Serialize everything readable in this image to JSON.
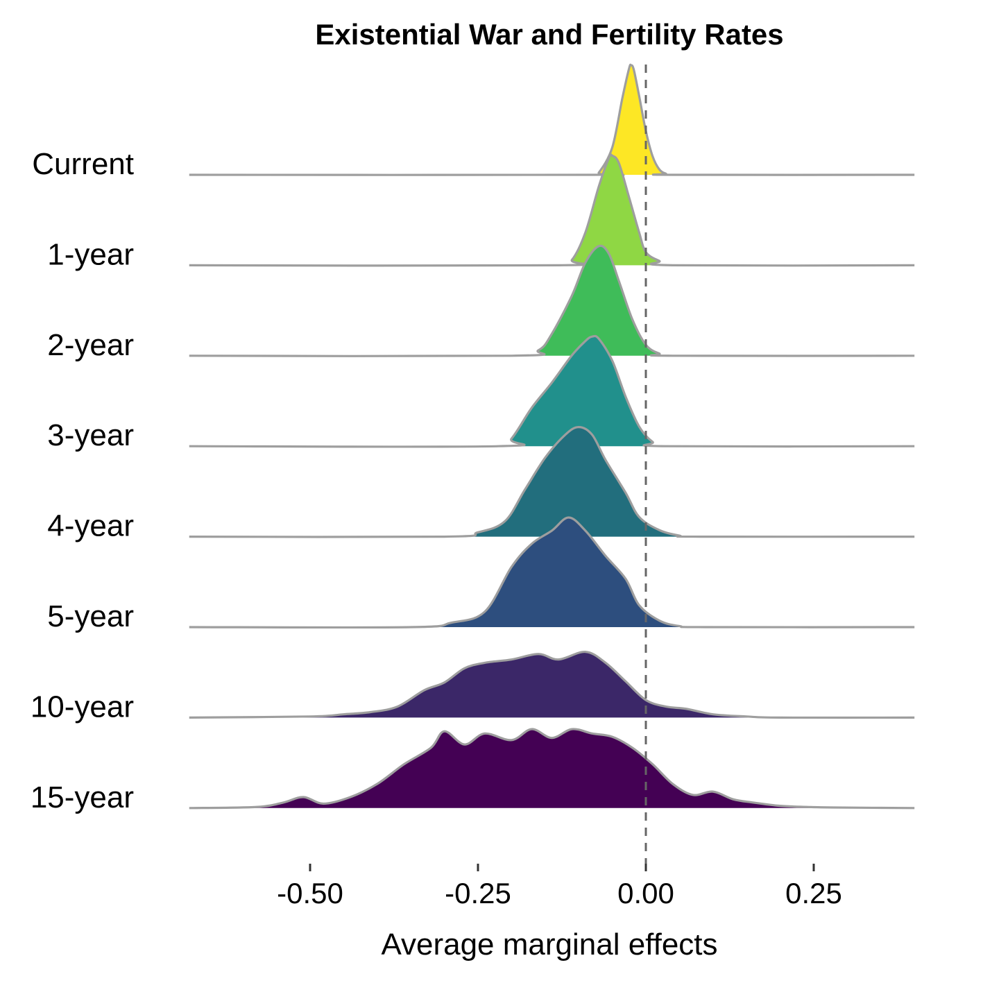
{
  "chart_data": {
    "type": "ridgeline",
    "title": "Existential War and Fertility Rates",
    "xlabel": "Average marginal effects",
    "ylabel": "",
    "xlim": [
      -0.68,
      0.4
    ],
    "x_ticks": [
      -0.5,
      -0.25,
      0.0,
      0.25
    ],
    "x_tick_labels": [
      "-0.50",
      "-0.25",
      "0.00",
      "0.25"
    ],
    "reference_line": {
      "x": 0.0,
      "style": "dashed",
      "color": "#666666"
    },
    "outline_color": "#9e9e9e",
    "series": [
      {
        "name": "Current",
        "color": "#fde725",
        "points": [
          [
            -0.68,
            0
          ],
          [
            -0.08,
            0
          ],
          [
            -0.07,
            0.02
          ],
          [
            -0.05,
            0.25
          ],
          [
            -0.035,
            0.7
          ],
          [
            -0.025,
            0.97
          ],
          [
            -0.022,
            1.0
          ],
          [
            -0.018,
            0.96
          ],
          [
            -0.01,
            0.72
          ],
          [
            0.0,
            0.4
          ],
          [
            0.01,
            0.17
          ],
          [
            0.02,
            0.05
          ],
          [
            0.03,
            0.01
          ],
          [
            0.04,
            0
          ],
          [
            0.4,
            0
          ]
        ]
      },
      {
        "name": "1-year",
        "color": "#8fd744",
        "points": [
          [
            -0.68,
            0
          ],
          [
            -0.13,
            0
          ],
          [
            -0.11,
            0.05
          ],
          [
            -0.09,
            0.3
          ],
          [
            -0.07,
            0.72
          ],
          [
            -0.055,
            0.98
          ],
          [
            -0.05,
            1.0
          ],
          [
            -0.04,
            0.93
          ],
          [
            -0.025,
            0.62
          ],
          [
            -0.01,
            0.3
          ],
          [
            0.0,
            0.12
          ],
          [
            0.02,
            0.04
          ],
          [
            0.04,
            0
          ],
          [
            0.4,
            0
          ]
        ]
      },
      {
        "name": "2-year",
        "color": "#3fbc59",
        "points": [
          [
            -0.68,
            0
          ],
          [
            -0.2,
            0
          ],
          [
            -0.16,
            0.05
          ],
          [
            -0.14,
            0.2
          ],
          [
            -0.11,
            0.55
          ],
          [
            -0.09,
            0.85
          ],
          [
            -0.07,
            1.0
          ],
          [
            -0.055,
            0.93
          ],
          [
            -0.04,
            0.68
          ],
          [
            -0.02,
            0.33
          ],
          [
            0.0,
            0.1
          ],
          [
            0.02,
            0.02
          ],
          [
            0.04,
            0
          ],
          [
            0.4,
            0
          ]
        ]
      },
      {
        "name": "3-year",
        "color": "#21908c",
        "points": [
          [
            -0.68,
            0
          ],
          [
            -0.22,
            0
          ],
          [
            -0.2,
            0.07
          ],
          [
            -0.17,
            0.35
          ],
          [
            -0.14,
            0.58
          ],
          [
            -0.11,
            0.83
          ],
          [
            -0.09,
            0.96
          ],
          [
            -0.08,
            1.0
          ],
          [
            -0.07,
            0.98
          ],
          [
            -0.05,
            0.78
          ],
          [
            -0.03,
            0.45
          ],
          [
            -0.01,
            0.18
          ],
          [
            0.01,
            0.04
          ],
          [
            0.03,
            0
          ],
          [
            0.4,
            0
          ]
        ]
      },
      {
        "name": "4-year",
        "color": "#226e7d",
        "points": [
          [
            -0.68,
            0
          ],
          [
            -0.3,
            0
          ],
          [
            -0.25,
            0.04
          ],
          [
            -0.21,
            0.14
          ],
          [
            -0.18,
            0.43
          ],
          [
            -0.15,
            0.72
          ],
          [
            -0.12,
            0.93
          ],
          [
            -0.1,
            1.0
          ],
          [
            -0.08,
            0.93
          ],
          [
            -0.06,
            0.7
          ],
          [
            -0.03,
            0.4
          ],
          [
            -0.01,
            0.18
          ],
          [
            0.02,
            0.06
          ],
          [
            0.05,
            0.01
          ],
          [
            0.08,
            0
          ],
          [
            0.4,
            0
          ]
        ]
      },
      {
        "name": "5-year",
        "color": "#2d4e7e",
        "points": [
          [
            -0.68,
            0
          ],
          [
            -0.35,
            0
          ],
          [
            -0.29,
            0.04
          ],
          [
            -0.24,
            0.14
          ],
          [
            -0.2,
            0.55
          ],
          [
            -0.17,
            0.76
          ],
          [
            -0.14,
            0.88
          ],
          [
            -0.115,
            1.0
          ],
          [
            -0.09,
            0.88
          ],
          [
            -0.06,
            0.65
          ],
          [
            -0.03,
            0.44
          ],
          [
            -0.01,
            0.2
          ],
          [
            0.02,
            0.06
          ],
          [
            0.05,
            0.01
          ],
          [
            0.09,
            0
          ],
          [
            0.4,
            0
          ]
        ]
      },
      {
        "name": "10-year",
        "color": "#3b2768",
        "points": [
          [
            -0.68,
            0
          ],
          [
            -0.5,
            0.01
          ],
          [
            -0.45,
            0.03
          ],
          [
            -0.41,
            0.05
          ],
          [
            -0.37,
            0.1
          ],
          [
            -0.33,
            0.25
          ],
          [
            -0.3,
            0.32
          ],
          [
            -0.27,
            0.45
          ],
          [
            -0.24,
            0.5
          ],
          [
            -0.2,
            0.53
          ],
          [
            -0.16,
            0.58
          ],
          [
            -0.13,
            0.53
          ],
          [
            -0.09,
            0.6
          ],
          [
            -0.06,
            0.5
          ],
          [
            -0.03,
            0.33
          ],
          [
            0.0,
            0.16
          ],
          [
            0.03,
            0.1
          ],
          [
            0.06,
            0.08
          ],
          [
            0.1,
            0.03
          ],
          [
            0.15,
            0.01
          ],
          [
            0.2,
            0
          ],
          [
            0.4,
            0
          ]
        ]
      },
      {
        "name": "15-year",
        "color": "#440154",
        "points": [
          [
            -0.68,
            0
          ],
          [
            -0.58,
            0.01
          ],
          [
            -0.54,
            0.05
          ],
          [
            -0.51,
            0.1
          ],
          [
            -0.48,
            0.04
          ],
          [
            -0.44,
            0.1
          ],
          [
            -0.4,
            0.22
          ],
          [
            -0.36,
            0.4
          ],
          [
            -0.32,
            0.55
          ],
          [
            -0.3,
            0.7
          ],
          [
            -0.27,
            0.58
          ],
          [
            -0.24,
            0.68
          ],
          [
            -0.2,
            0.62
          ],
          [
            -0.17,
            0.72
          ],
          [
            -0.14,
            0.64
          ],
          [
            -0.11,
            0.72
          ],
          [
            -0.08,
            0.68
          ],
          [
            -0.05,
            0.65
          ],
          [
            -0.02,
            0.55
          ],
          [
            0.01,
            0.4
          ],
          [
            0.04,
            0.22
          ],
          [
            0.07,
            0.12
          ],
          [
            0.1,
            0.15
          ],
          [
            0.13,
            0.08
          ],
          [
            0.16,
            0.05
          ],
          [
            0.2,
            0.02
          ],
          [
            0.24,
            0.01
          ],
          [
            0.28,
            0.005
          ],
          [
            0.4,
            0
          ]
        ]
      }
    ]
  }
}
